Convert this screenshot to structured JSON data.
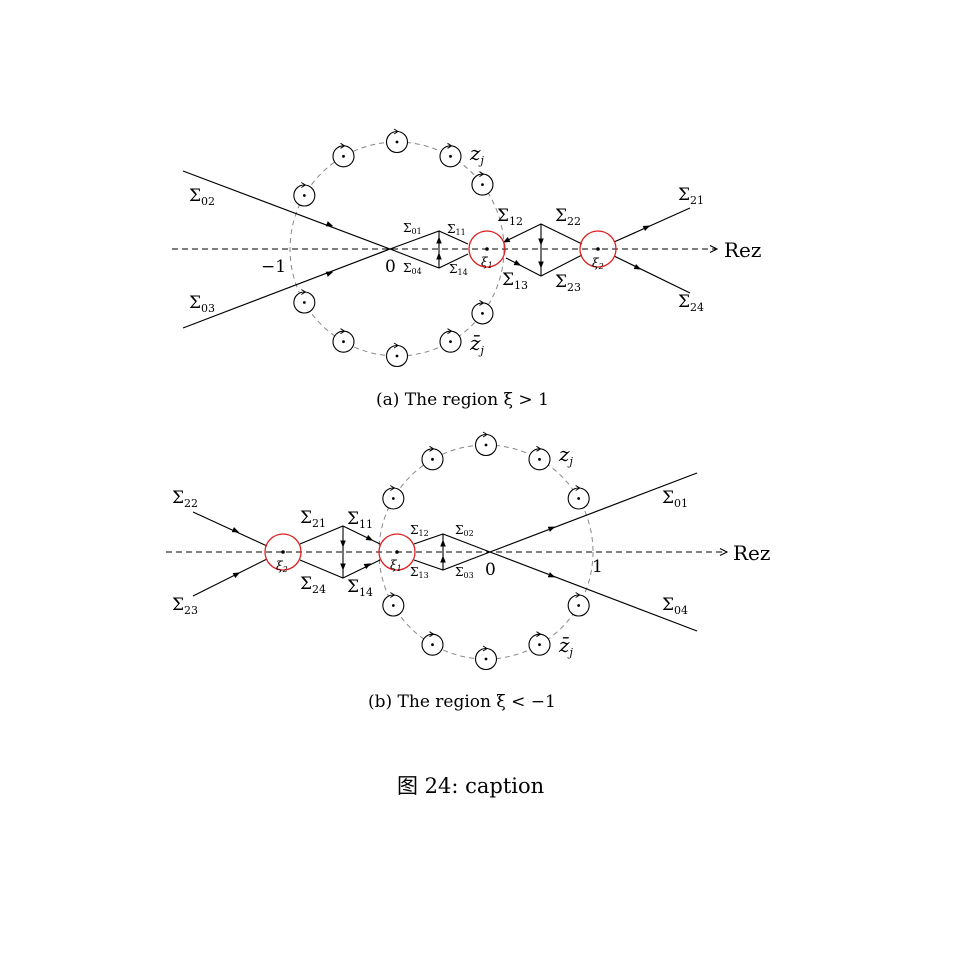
{
  "figure_a": {
    "caption": "(a) The  region ξ > 1",
    "axis_label": "Rez",
    "labels": {
      "s02": {
        "base": "Σ",
        "sub": "02"
      },
      "s03": {
        "base": "Σ",
        "sub": "03"
      },
      "s01": {
        "base": "Σ",
        "sub": "01"
      },
      "s04": {
        "base": "Σ",
        "sub": "04"
      },
      "s11": {
        "base": "Σ",
        "sub": "11"
      },
      "s14": {
        "base": "Σ",
        "sub": "14"
      },
      "s12": {
        "base": "Σ",
        "sub": "12"
      },
      "s13": {
        "base": "Σ",
        "sub": "13"
      },
      "s22": {
        "base": "Σ",
        "sub": "22"
      },
      "s23": {
        "base": "Σ",
        "sub": "23"
      },
      "s21": {
        "base": "Σ",
        "sub": "21"
      },
      "s24": {
        "base": "Σ",
        "sub": "24"
      },
      "zj": {
        "base": "z",
        "sub": "j"
      },
      "zbarj": {
        "base": "z̄",
        "sub": "j"
      },
      "minus_one": "−1",
      "zero": "0",
      "xi1": {
        "base": "ξ",
        "sub": "1"
      },
      "xi2": {
        "base": "ξ",
        "sub": "2"
      }
    }
  },
  "figure_b": {
    "caption": "(b) The  region ξ < −1",
    "axis_label": "Rez",
    "labels": {
      "s22": {
        "base": "Σ",
        "sub": "22"
      },
      "s23": {
        "base": "Σ",
        "sub": "23"
      },
      "s21": {
        "base": "Σ",
        "sub": "21"
      },
      "s24": {
        "base": "Σ",
        "sub": "24"
      },
      "s11": {
        "base": "Σ",
        "sub": "11"
      },
      "s14": {
        "base": "Σ",
        "sub": "14"
      },
      "s12": {
        "base": "Σ",
        "sub": "12"
      },
      "s13": {
        "base": "Σ",
        "sub": "13"
      },
      "s02": {
        "base": "Σ",
        "sub": "02"
      },
      "s03": {
        "base": "Σ",
        "sub": "03"
      },
      "s01": {
        "base": "Σ",
        "sub": "01"
      },
      "s04": {
        "base": "Σ",
        "sub": "04"
      },
      "zj": {
        "base": "z",
        "sub": "j"
      },
      "zbarj": {
        "base": "z̄",
        "sub": "j"
      },
      "one": "1",
      "zero": "0",
      "xi1": {
        "base": "ξ",
        "sub": "1"
      },
      "xi2": {
        "base": "ξ",
        "sub": "2"
      }
    }
  },
  "main_caption": "图 24: caption",
  "colors": {
    "ink": "#000000",
    "critical_circle": "#e02020",
    "dashed_circle": "#888888"
  }
}
